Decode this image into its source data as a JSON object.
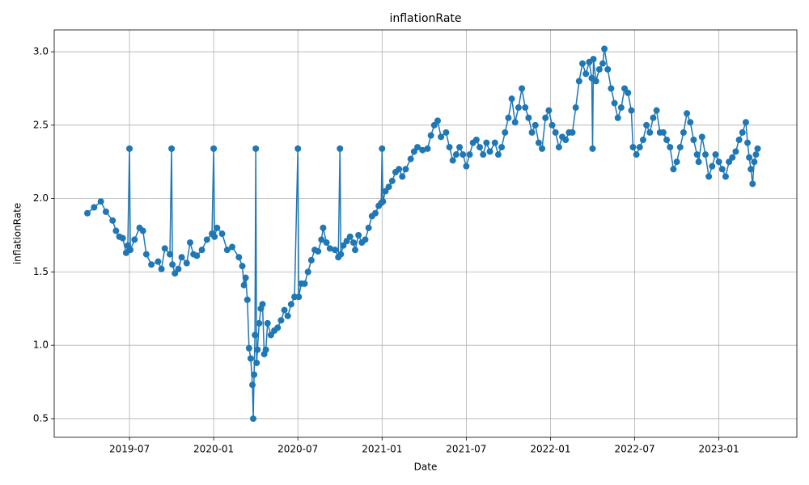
{
  "chart_data": {
    "type": "line",
    "title": "inflationRate",
    "x_label": "Date",
    "y_label": "inflationRate",
    "color": "#1f77b4",
    "grid": true,
    "x": [
      2019.25,
      2019.29,
      2019.33,
      2019.36,
      2019.4,
      2019.42,
      2019.44,
      2019.46,
      2019.48,
      2019.49,
      2019.5,
      2019.505,
      2019.53,
      2019.56,
      2019.58,
      2019.6,
      2019.63,
      2019.67,
      2019.69,
      2019.71,
      2019.74,
      2019.75,
      2019.755,
      2019.77,
      2019.79,
      2019.81,
      2019.84,
      2019.86,
      2019.88,
      2019.9,
      2019.93,
      2019.96,
      2019.99,
      2020.0,
      2020.005,
      2020.02,
      2020.05,
      2020.08,
      2020.11,
      2020.15,
      2020.17,
      2020.18,
      2020.19,
      2020.2,
      2020.21,
      2020.22,
      2020.23,
      2020.235,
      2020.24,
      2020.245,
      2020.25,
      2020.255,
      2020.26,
      2020.27,
      2020.28,
      2020.29,
      2020.3,
      2020.31,
      2020.32,
      2020.34,
      2020.36,
      2020.38,
      2020.4,
      2020.42,
      2020.44,
      2020.46,
      2020.48,
      2020.5,
      2020.505,
      2020.52,
      2020.54,
      2020.56,
      2020.58,
      2020.6,
      2020.62,
      2020.64,
      2020.65,
      2020.67,
      2020.69,
      2020.72,
      2020.74,
      2020.75,
      2020.755,
      2020.77,
      2020.79,
      2020.81,
      2020.83,
      2020.84,
      2020.86,
      2020.88,
      2020.9,
      2020.92,
      2020.94,
      2020.96,
      2020.98,
      2020.995,
      2021.0,
      2021.005,
      2021.02,
      2021.04,
      2021.06,
      2021.08,
      2021.1,
      2021.12,
      2021.14,
      2021.17,
      2021.19,
      2021.21,
      2021.24,
      2021.27,
      2021.29,
      2021.31,
      2021.33,
      2021.35,
      2021.38,
      2021.4,
      2021.42,
      2021.44,
      2021.46,
      2021.48,
      2021.5,
      2021.52,
      2021.54,
      2021.56,
      2021.58,
      2021.6,
      2021.62,
      2021.64,
      2021.67,
      2021.69,
      2021.71,
      2021.73,
      2021.75,
      2021.77,
      2021.79,
      2021.81,
      2021.83,
      2021.85,
      2021.87,
      2021.89,
      2021.91,
      2021.93,
      2021.95,
      2021.97,
      2021.99,
      2022.01,
      2022.03,
      2022.05,
      2022.07,
      2022.09,
      2022.11,
      2022.13,
      2022.15,
      2022.17,
      2022.19,
      2022.21,
      2022.23,
      2022.245,
      2022.25,
      2022.255,
      2022.27,
      2022.29,
      2022.31,
      2022.32,
      2022.34,
      2022.36,
      2022.38,
      2022.4,
      2022.42,
      2022.44,
      2022.46,
      2022.48,
      2022.49,
      2022.51,
      2022.53,
      2022.55,
      2022.57,
      2022.59,
      2022.61,
      2022.63,
      2022.65,
      2022.67,
      2022.69,
      2022.71,
      2022.73,
      2022.75,
      2022.77,
      2022.79,
      2022.81,
      2022.83,
      2022.85,
      2022.87,
      2022.88,
      2022.9,
      2022.92,
      2022.94,
      2022.96,
      2022.98,
      2023.0,
      2023.02,
      2023.04,
      2023.06,
      2023.08,
      2023.1,
      2023.12,
      2023.14,
      2023.16,
      2023.17,
      2023.18,
      2023.19,
      2023.2,
      2023.21,
      2023.22,
      2023.23
    ],
    "values": [
      1.9,
      1.94,
      1.98,
      1.91,
      1.85,
      1.78,
      1.74,
      1.73,
      1.63,
      1.68,
      2.34,
      1.65,
      1.72,
      1.8,
      1.78,
      1.62,
      1.55,
      1.57,
      1.52,
      1.66,
      1.62,
      2.34,
      1.55,
      1.49,
      1.52,
      1.6,
      1.56,
      1.7,
      1.62,
      1.61,
      1.65,
      1.72,
      1.76,
      2.34,
      1.74,
      1.8,
      1.76,
      1.65,
      1.67,
      1.6,
      1.54,
      1.41,
      1.46,
      1.31,
      0.98,
      0.91,
      0.73,
      0.5,
      0.8,
      1.07,
      2.34,
      0.88,
      0.97,
      1.15,
      1.25,
      1.28,
      0.94,
      0.97,
      1.15,
      1.07,
      1.1,
      1.12,
      1.17,
      1.24,
      1.2,
      1.28,
      1.33,
      2.34,
      1.33,
      1.42,
      1.42,
      1.5,
      1.58,
      1.65,
      1.64,
      1.72,
      1.8,
      1.7,
      1.66,
      1.65,
      1.6,
      2.34,
      1.62,
      1.68,
      1.71,
      1.74,
      1.7,
      1.65,
      1.75,
      1.7,
      1.72,
      1.8,
      1.88,
      1.9,
      1.95,
      1.97,
      2.34,
      1.98,
      2.05,
      2.08,
      2.12,
      2.18,
      2.2,
      2.15,
      2.2,
      2.27,
      2.32,
      2.35,
      2.33,
      2.34,
      2.43,
      2.5,
      2.53,
      2.42,
      2.45,
      2.35,
      2.26,
      2.3,
      2.35,
      2.3,
      2.22,
      2.3,
      2.38,
      2.4,
      2.35,
      2.3,
      2.38,
      2.32,
      2.38,
      2.3,
      2.35,
      2.45,
      2.55,
      2.68,
      2.52,
      2.62,
      2.75,
      2.62,
      2.55,
      2.45,
      2.5,
      2.38,
      2.34,
      2.55,
      2.6,
      2.5,
      2.45,
      2.35,
      2.42,
      2.4,
      2.45,
      2.45,
      2.62,
      2.8,
      2.92,
      2.85,
      2.93,
      2.82,
      2.34,
      2.95,
      2.8,
      2.88,
      2.92,
      3.02,
      2.88,
      2.75,
      2.65,
      2.55,
      2.62,
      2.75,
      2.72,
      2.6,
      2.35,
      2.3,
      2.35,
      2.4,
      2.5,
      2.45,
      2.55,
      2.6,
      2.45,
      2.45,
      2.4,
      2.35,
      2.2,
      2.25,
      2.35,
      2.45,
      2.58,
      2.52,
      2.4,
      2.3,
      2.25,
      2.42,
      2.3,
      2.15,
      2.22,
      2.3,
      2.25,
      2.2,
      2.15,
      2.25,
      2.28,
      2.32,
      2.4,
      2.45,
      2.52,
      2.38,
      2.28,
      2.2,
      2.1,
      2.25,
      2.3,
      2.34
    ],
    "xlim": [
      2019.053,
      2023.463
    ],
    "xticks": [
      {
        "value": 2019.5,
        "label": "2019-07"
      },
      {
        "value": 2020.0,
        "label": "2020-01"
      },
      {
        "value": 2020.5,
        "label": "2020-07"
      },
      {
        "value": 2021.0,
        "label": "2021-01"
      },
      {
        "value": 2021.5,
        "label": "2021-07"
      },
      {
        "value": 2022.0,
        "label": "2022-01"
      },
      {
        "value": 2022.5,
        "label": "2022-07"
      },
      {
        "value": 2023.0,
        "label": "2023-01"
      }
    ],
    "ylim": [
      0.373,
      3.149
    ],
    "yticks": [
      0.5,
      {
        "value": 1.0,
        "label": "1.0"
      },
      1.5,
      {
        "value": 2.0,
        "label": "2.0"
      },
      2.5,
      {
        "value": 3.0,
        "label": "3.0"
      }
    ]
  }
}
